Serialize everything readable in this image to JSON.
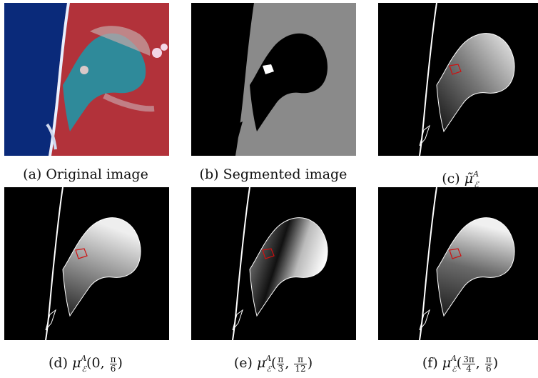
{
  "panels": [
    {
      "id": "a",
      "label": "(a)",
      "caption": "Original image"
    },
    {
      "id": "b",
      "label": "(b)",
      "caption": "Segmented image"
    },
    {
      "id": "c",
      "label": "(c)",
      "symbol": "μ̃",
      "sup": "A",
      "sub": "ℰ"
    },
    {
      "id": "d",
      "label": "(d)",
      "symbol": "μ",
      "sup": "A",
      "sub": "ℰ",
      "arg1": "0",
      "arg2_num": "π",
      "arg2_den": "6"
    },
    {
      "id": "e",
      "label": "(e)",
      "symbol": "μ",
      "sup": "A",
      "sub": "ℰ",
      "arg1_num": "π",
      "arg1_den": "3",
      "arg2_num": "π",
      "arg2_den": "12"
    },
    {
      "id": "f",
      "label": "(f)",
      "symbol": "μ",
      "sup": "A",
      "sub": "ℰ",
      "arg1_num": "3π",
      "arg1_den": "4",
      "arg2_num": "π",
      "arg2_den": "6"
    }
  ],
  "colors": {
    "satellite_land": "#b2323a",
    "satellite_sea": "#0a2a7a",
    "lagoon": "#2f8a9a",
    "segment_gray": "#8a8a8a",
    "boundary": "#ffffff",
    "highlight": "#d01010"
  }
}
